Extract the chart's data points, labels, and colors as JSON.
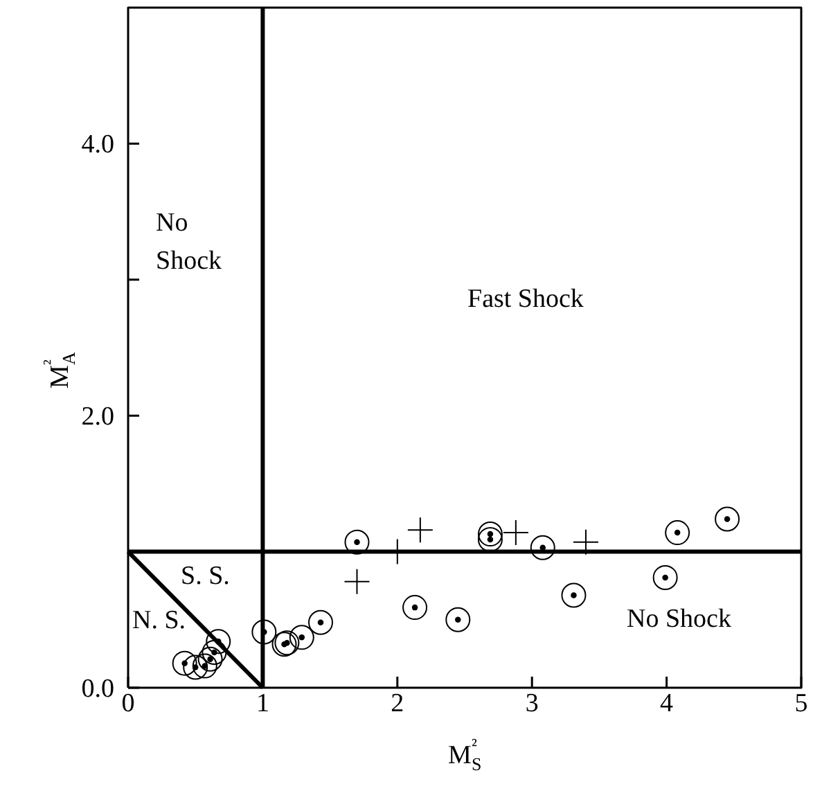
{
  "chart_data": {
    "type": "scatter",
    "xlabel": "M$_{S}$²",
    "ylabel": "M$_{A}$²",
    "xlim": [
      0,
      5
    ],
    "ylim": [
      0,
      5
    ],
    "xticks": [
      0,
      1,
      2,
      3,
      4,
      5
    ],
    "yticks": [
      {
        "value": 0,
        "label": "0.0"
      },
      {
        "value": 1,
        "label": null
      },
      {
        "value": 2,
        "label": "2.0"
      },
      {
        "value": 3,
        "label": null
      },
      {
        "value": 4,
        "label": "4.0"
      }
    ],
    "grid": false,
    "series": [
      {
        "marker": "circle",
        "color": "#000000",
        "x": [
          0.42,
          0.5,
          0.57,
          0.61,
          0.64,
          0.67,
          1.01,
          1.16,
          1.18,
          1.29,
          1.43,
          1.7,
          2.13,
          2.45,
          2.69,
          2.69,
          3.08,
          3.31,
          3.99,
          4.08,
          4.45
        ],
        "values": [
          0.18,
          0.15,
          0.16,
          0.21,
          0.26,
          0.34,
          0.41,
          0.32,
          0.33,
          0.37,
          0.48,
          1.07,
          0.59,
          0.5,
          1.13,
          1.09,
          1.03,
          0.68,
          0.81,
          1.14,
          1.24
        ]
      },
      {
        "marker": "cross",
        "color": "#000000",
        "x": [
          1.7,
          2.0,
          2.17,
          2.88,
          3.4
        ],
        "values": [
          0.78,
          1.0,
          1.16,
          1.14,
          1.07
        ]
      },
      {
        "type": "line",
        "marker": "none",
        "color": "#000000",
        "x": [
          0,
          1
        ],
        "values": [
          1,
          0
        ]
      },
      {
        "type": "line",
        "marker": "none",
        "color": "#000000",
        "x": [
          1,
          1
        ],
        "values": [
          0,
          5
        ]
      },
      {
        "type": "line",
        "marker": "none",
        "color": "#000000",
        "x": [
          0,
          5
        ],
        "values": [
          1,
          1
        ]
      }
    ],
    "annotations": [
      "No\nShock",
      "Fast Shock",
      "S. S.",
      "N. S.",
      "No Shock"
    ]
  }
}
